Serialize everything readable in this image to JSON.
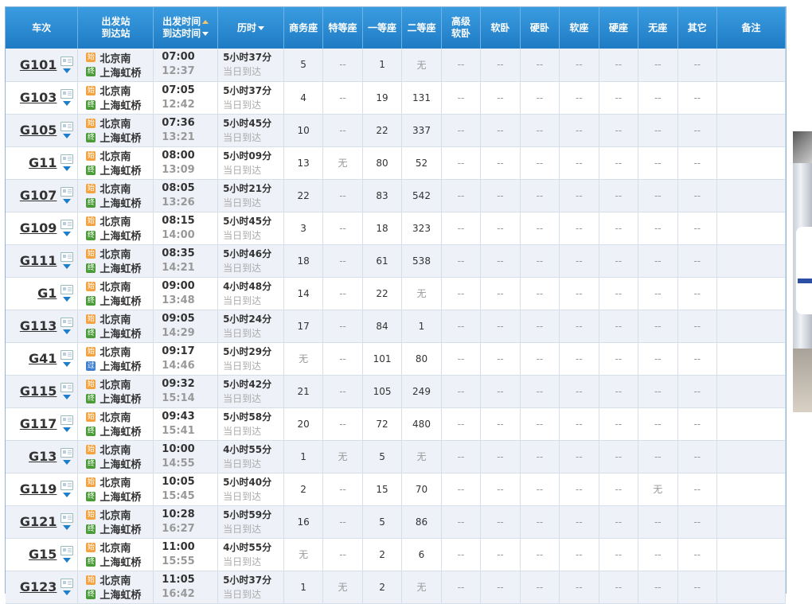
{
  "header": {
    "train": "车次",
    "stations_line1": "出发站",
    "stations_line2": "到达站",
    "times_line1": "出发时间",
    "times_line2": "到达时间",
    "duration": "历时",
    "business": "商务座",
    "special": "特等座",
    "first": "一等座",
    "second": "二等座",
    "soft_sleeper_adv_line1": "高级",
    "soft_sleeper_adv_line2": "软卧",
    "soft_sleeper": "软卧",
    "hard_sleeper": "硬卧",
    "soft_seat": "软座",
    "hard_seat": "硬座",
    "no_seat": "无座",
    "other": "其它",
    "remark": "备注"
  },
  "badges": {
    "start": "始",
    "end": "终",
    "pass": "过"
  },
  "rows": [
    {
      "train": "G101",
      "from": "北京南",
      "to": "上海虹桥",
      "to_badge": "end",
      "dep": "07:00",
      "arr": "12:37",
      "dur": "5小时37分",
      "same_day": "当日到达",
      "business": "5",
      "special": "--",
      "first": "1",
      "second": "无",
      "adv": "--",
      "soft": "--",
      "hard": "--",
      "softseat": "--",
      "hardseat": "--",
      "noseat": "--",
      "other": "--"
    },
    {
      "train": "G103",
      "from": "北京南",
      "to": "上海虹桥",
      "to_badge": "end",
      "dep": "07:05",
      "arr": "12:42",
      "dur": "5小时37分",
      "same_day": "当日到达",
      "business": "4",
      "special": "--",
      "first": "19",
      "second": "131",
      "adv": "--",
      "soft": "--",
      "hard": "--",
      "softseat": "--",
      "hardseat": "--",
      "noseat": "--",
      "other": "--"
    },
    {
      "train": "G105",
      "from": "北京南",
      "to": "上海虹桥",
      "to_badge": "end",
      "dep": "07:36",
      "arr": "13:21",
      "dur": "5小时45分",
      "same_day": "当日到达",
      "business": "10",
      "special": "--",
      "first": "22",
      "second": "337",
      "adv": "--",
      "soft": "--",
      "hard": "--",
      "softseat": "--",
      "hardseat": "--",
      "noseat": "--",
      "other": "--"
    },
    {
      "train": "G11",
      "from": "北京南",
      "to": "上海虹桥",
      "to_badge": "end",
      "dep": "08:00",
      "arr": "13:09",
      "dur": "5小时09分",
      "same_day": "当日到达",
      "business": "13",
      "special": "无",
      "first": "80",
      "second": "52",
      "adv": "--",
      "soft": "--",
      "hard": "--",
      "softseat": "--",
      "hardseat": "--",
      "noseat": "--",
      "other": "--"
    },
    {
      "train": "G107",
      "from": "北京南",
      "to": "上海虹桥",
      "to_badge": "end",
      "dep": "08:05",
      "arr": "13:26",
      "dur": "5小时21分",
      "same_day": "当日到达",
      "business": "22",
      "special": "--",
      "first": "83",
      "second": "542",
      "adv": "--",
      "soft": "--",
      "hard": "--",
      "softseat": "--",
      "hardseat": "--",
      "noseat": "--",
      "other": "--"
    },
    {
      "train": "G109",
      "from": "北京南",
      "to": "上海虹桥",
      "to_badge": "end",
      "dep": "08:15",
      "arr": "14:00",
      "dur": "5小时45分",
      "same_day": "当日到达",
      "business": "3",
      "special": "--",
      "first": "18",
      "second": "323",
      "adv": "--",
      "soft": "--",
      "hard": "--",
      "softseat": "--",
      "hardseat": "--",
      "noseat": "--",
      "other": "--"
    },
    {
      "train": "G111",
      "from": "北京南",
      "to": "上海虹桥",
      "to_badge": "end",
      "dep": "08:35",
      "arr": "14:21",
      "dur": "5小时46分",
      "same_day": "当日到达",
      "business": "18",
      "special": "--",
      "first": "61",
      "second": "538",
      "adv": "--",
      "soft": "--",
      "hard": "--",
      "softseat": "--",
      "hardseat": "--",
      "noseat": "--",
      "other": "--"
    },
    {
      "train": "G1",
      "from": "北京南",
      "to": "上海虹桥",
      "to_badge": "end",
      "dep": "09:00",
      "arr": "13:48",
      "dur": "4小时48分",
      "same_day": "当日到达",
      "business": "14",
      "special": "--",
      "first": "22",
      "second": "无",
      "adv": "--",
      "soft": "--",
      "hard": "--",
      "softseat": "--",
      "hardseat": "--",
      "noseat": "--",
      "other": "--"
    },
    {
      "train": "G113",
      "from": "北京南",
      "to": "上海虹桥",
      "to_badge": "end",
      "dep": "09:05",
      "arr": "14:29",
      "dur": "5小时24分",
      "same_day": "当日到达",
      "business": "17",
      "special": "--",
      "first": "84",
      "second": "1",
      "adv": "--",
      "soft": "--",
      "hard": "--",
      "softseat": "--",
      "hardseat": "--",
      "noseat": "--",
      "other": "--"
    },
    {
      "train": "G41",
      "from": "北京南",
      "to": "上海虹桥",
      "to_badge": "pass",
      "dep": "09:17",
      "arr": "14:46",
      "dur": "5小时29分",
      "same_day": "当日到达",
      "business": "无",
      "special": "--",
      "first": "101",
      "second": "80",
      "adv": "--",
      "soft": "--",
      "hard": "--",
      "softseat": "--",
      "hardseat": "--",
      "noseat": "--",
      "other": "--"
    },
    {
      "train": "G115",
      "from": "北京南",
      "to": "上海虹桥",
      "to_badge": "end",
      "dep": "09:32",
      "arr": "15:14",
      "dur": "5小时42分",
      "same_day": "当日到达",
      "business": "21",
      "special": "--",
      "first": "105",
      "second": "249",
      "adv": "--",
      "soft": "--",
      "hard": "--",
      "softseat": "--",
      "hardseat": "--",
      "noseat": "--",
      "other": "--"
    },
    {
      "train": "G117",
      "from": "北京南",
      "to": "上海虹桥",
      "to_badge": "end",
      "dep": "09:43",
      "arr": "15:41",
      "dur": "5小时58分",
      "same_day": "当日到达",
      "business": "20",
      "special": "--",
      "first": "72",
      "second": "480",
      "adv": "--",
      "soft": "--",
      "hard": "--",
      "softseat": "--",
      "hardseat": "--",
      "noseat": "--",
      "other": "--"
    },
    {
      "train": "G13",
      "from": "北京南",
      "to": "上海虹桥",
      "to_badge": "end",
      "dep": "10:00",
      "arr": "14:55",
      "dur": "4小时55分",
      "same_day": "当日到达",
      "business": "1",
      "special": "无",
      "first": "5",
      "second": "无",
      "adv": "--",
      "soft": "--",
      "hard": "--",
      "softseat": "--",
      "hardseat": "--",
      "noseat": "--",
      "other": "--"
    },
    {
      "train": "G119",
      "from": "北京南",
      "to": "上海虹桥",
      "to_badge": "end",
      "dep": "10:05",
      "arr": "15:45",
      "dur": "5小时40分",
      "same_day": "当日到达",
      "business": "2",
      "special": "--",
      "first": "15",
      "second": "70",
      "adv": "--",
      "soft": "--",
      "hard": "--",
      "softseat": "--",
      "hardseat": "--",
      "noseat": "无",
      "other": "--"
    },
    {
      "train": "G121",
      "from": "北京南",
      "to": "上海虹桥",
      "to_badge": "end",
      "dep": "10:28",
      "arr": "16:27",
      "dur": "5小时59分",
      "same_day": "当日到达",
      "business": "16",
      "special": "--",
      "first": "5",
      "second": "86",
      "adv": "--",
      "soft": "--",
      "hard": "--",
      "softseat": "--",
      "hardseat": "--",
      "noseat": "--",
      "other": "--"
    },
    {
      "train": "G15",
      "from": "北京南",
      "to": "上海虹桥",
      "to_badge": "end",
      "dep": "11:00",
      "arr": "15:55",
      "dur": "4小时55分",
      "same_day": "当日到达",
      "business": "无",
      "special": "--",
      "first": "2",
      "second": "6",
      "adv": "--",
      "soft": "--",
      "hard": "--",
      "softseat": "--",
      "hardseat": "--",
      "noseat": "--",
      "other": "--"
    },
    {
      "train": "G123",
      "from": "北京南",
      "to": "上海虹桥",
      "to_badge": "end",
      "dep": "11:05",
      "arr": "16:42",
      "dur": "5小时37分",
      "same_day": "当日到达",
      "business": "1",
      "special": "无",
      "first": "2",
      "second": "无",
      "adv": "--",
      "soft": "--",
      "hard": "--",
      "softseat": "--",
      "hardseat": "--",
      "noseat": "--",
      "other": "--"
    }
  ]
}
